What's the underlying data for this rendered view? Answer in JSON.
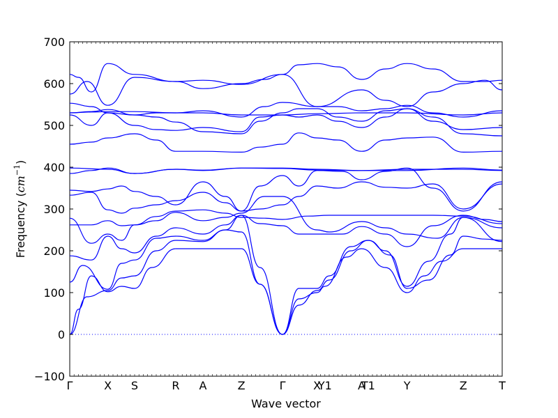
{
  "chart_data": {
    "type": "line",
    "title": "",
    "xlabel": "Wave vector",
    "ylabel_prefix": "Frequency (",
    "ylabel_unit": "cm",
    "ylabel_exp": "−1",
    "ylabel_suffix": ")",
    "ylim": [
      -100,
      700
    ],
    "yticks": [
      -100,
      0,
      100,
      200,
      300,
      400,
      500,
      600,
      700
    ],
    "grid": false,
    "line_color": "#0000ff",
    "zero_line_color": "#0000ff",
    "high_symmetry_points": [
      {
        "label": "Γ",
        "x": 0.0
      },
      {
        "label": "X",
        "x": 0.088
      },
      {
        "label": "S",
        "x": 0.15
      },
      {
        "label": "R",
        "x": 0.245
      },
      {
        "label": "A",
        "x": 0.308
      },
      {
        "label": "Z",
        "x": 0.397
      },
      {
        "label": "Γ",
        "x": 0.492
      },
      {
        "label": "X",
        "x": 0.572
      },
      {
        "label": "Y1",
        "x": 0.59
      },
      {
        "label": "A",
        "x": 0.675
      },
      {
        "label": "T1",
        "x": 0.69
      },
      {
        "label": "Y",
        "x": 0.78
      },
      {
        "label": "Z",
        "x": 0.91
      },
      {
        "label": "T",
        "x": 1.0
      }
    ],
    "series": [
      {
        "x": [
          0,
          0.02,
          0.05,
          0.088,
          0.12,
          0.15
        ],
        "values": [
          0,
          60,
          140,
          102,
          115,
          110
        ]
      },
      {
        "x": [
          0.15,
          0.19,
          0.245
        ],
        "values": [
          110,
          160,
          205
        ]
      },
      {
        "x": [
          0.245,
          0.308,
          0.397,
          0.44,
          0.492
        ],
        "values": [
          205,
          205,
          205,
          120,
          0
        ]
      },
      {
        "x": [
          0.492,
          0.53,
          0.572,
          0.59,
          0.64,
          0.675,
          0.73,
          0.78
        ],
        "values": [
          0,
          85,
          100,
          115,
          185,
          205,
          160,
          100
        ]
      },
      {
        "x": [
          0.78,
          0.82,
          0.86,
          0.91,
          1.0
        ],
        "values": [
          100,
          140,
          175,
          205,
          205
        ]
      },
      {
        "x": [
          0,
          0.04,
          0.088,
          0.12,
          0.15,
          0.2,
          0.245,
          0.308,
          0.36,
          0.397,
          0.44,
          0.492
        ],
        "values": [
          0,
          90,
          105,
          135,
          140,
          200,
          225,
          222,
          250,
          245,
          120,
          0
        ]
      },
      {
        "x": [
          0.492,
          0.53,
          0.572,
          0.6,
          0.65,
          0.69,
          0.74,
          0.78,
          0.83,
          0.88,
          0.91,
          0.96,
          1.0
        ],
        "values": [
          0,
          70,
          105,
          130,
          200,
          225,
          190,
          110,
          130,
          190,
          235,
          228,
          225
        ]
      },
      {
        "x": [
          0,
          0.03,
          0.088,
          0.12,
          0.15,
          0.2,
          0.245,
          0.308,
          0.36,
          0.397
        ],
        "values": [
          125,
          165,
          108,
          170,
          178,
          230,
          235,
          225,
          250,
          285
        ]
      },
      {
        "x": [
          0.397,
          0.44,
          0.492,
          0.53,
          0.572,
          0.6,
          0.65,
          0.69,
          0.73,
          0.78,
          0.83,
          0.88,
          0.91,
          1.0
        ],
        "values": [
          285,
          160,
          0,
          110,
          110,
          140,
          210,
          225,
          200,
          115,
          175,
          240,
          280,
          255
        ]
      },
      {
        "x": [
          0,
          0.05,
          0.088,
          0.12,
          0.15,
          0.2,
          0.245,
          0.308,
          0.36,
          0.397
        ],
        "values": [
          188,
          178,
          235,
          205,
          195,
          235,
          255,
          240,
          262,
          285
        ]
      },
      {
        "x": [
          0.397,
          0.44,
          0.492,
          0.53,
          0.572,
          0.63,
          0.675,
          0.73,
          0.78,
          0.84,
          0.91,
          0.96,
          1.0
        ],
        "values": [
          285,
          265,
          260,
          240,
          240,
          240,
          258,
          240,
          210,
          260,
          285,
          275,
          270
        ]
      },
      {
        "x": [
          0,
          0.05,
          0.088,
          0.12,
          0.15,
          0.2,
          0.245,
          0.308,
          0.36,
          0.397
        ],
        "values": [
          278,
          218,
          240,
          225,
          262,
          272,
          292,
          272,
          280,
          290
        ]
      },
      {
        "x": [
          0.397,
          0.45,
          0.492,
          0.572,
          0.6,
          0.675,
          0.73,
          0.78,
          0.85,
          0.91,
          1.0
        ],
        "values": [
          290,
          330,
          330,
          250,
          245,
          270,
          255,
          240,
          230,
          280,
          222
        ]
      },
      {
        "x": [
          0,
          0.05,
          0.088,
          0.12,
          0.15,
          0.2,
          0.245,
          0.308,
          0.36,
          0.397
        ],
        "values": [
          262,
          262,
          272,
          260,
          262,
          282,
          295,
          298,
          290,
          280
        ]
      },
      {
        "x": [
          0.397,
          0.45,
          0.492,
          0.55,
          0.6,
          0.675,
          0.73,
          0.78,
          0.84,
          0.91,
          1.0
        ],
        "values": [
          280,
          278,
          275,
          283,
          285,
          285,
          285,
          285,
          285,
          283,
          265
        ]
      },
      {
        "x": [
          0,
          0.05,
          0.088,
          0.12,
          0.15,
          0.2,
          0.245,
          0.308,
          0.36,
          0.397,
          0.44,
          0.492,
          0.53,
          0.572
        ],
        "values": [
          333,
          340,
          298,
          290,
          302,
          310,
          320,
          340,
          315,
          295,
          355,
          380,
          355,
          392
        ]
      },
      {
        "x": [
          0.572,
          0.63,
          0.675,
          0.73,
          0.78,
          0.84,
          0.91,
          1.0
        ],
        "values": [
          392,
          390,
          370,
          390,
          398,
          350,
          295,
          365
        ]
      },
      {
        "x": [
          0,
          0.05,
          0.088,
          0.12,
          0.15,
          0.2,
          0.245,
          0.308,
          0.36,
          0.397,
          0.44,
          0.492,
          0.53,
          0.572,
          0.62,
          0.675,
          0.73,
          0.78,
          0.84,
          0.91,
          1.0
        ],
        "values": [
          345,
          342,
          348,
          355,
          342,
          330,
          310,
          365,
          330,
          295,
          300,
          310,
          330,
          355,
          350,
          365,
          352,
          350,
          360,
          300,
          360
        ]
      },
      {
        "x": [
          0,
          0.088,
          0.15,
          0.245,
          0.308,
          0.397,
          0.492,
          0.572,
          0.675,
          0.78,
          0.91,
          1.0
        ],
        "values": [
          398,
          395,
          385,
          395,
          393,
          398,
          397,
          393,
          392,
          392,
          398,
          393
        ]
      },
      {
        "x": [
          0,
          0.05,
          0.088,
          0.15,
          0.245,
          0.308,
          0.397,
          0.492,
          0.572,
          0.675,
          0.78,
          0.91,
          1.0
        ],
        "values": [
          385,
          392,
          398,
          385,
          395,
          392,
          398,
          398,
          395,
          392,
          395,
          395,
          392
        ]
      },
      {
        "x": [
          0,
          0.05,
          0.088,
          0.15,
          0.2,
          0.245,
          0.308,
          0.397,
          0.44,
          0.492,
          0.53,
          0.572,
          0.62,
          0.675,
          0.73,
          0.78,
          0.84,
          0.91,
          1.0
        ],
        "values": [
          455,
          460,
          470,
          480,
          465,
          438,
          438,
          436,
          448,
          455,
          482,
          470,
          465,
          438,
          465,
          470,
          472,
          436,
          438
        ]
      },
      {
        "x": [
          0,
          0.05,
          0.088,
          0.15,
          0.2,
          0.245,
          0.308,
          0.397,
          0.44,
          0.492,
          0.53,
          0.572,
          0.62,
          0.675,
          0.73,
          0.78,
          0.84,
          0.91,
          1.0
        ],
        "values": [
          525,
          500,
          530,
          500,
          490,
          488,
          495,
          485,
          520,
          525,
          520,
          525,
          510,
          495,
          520,
          540,
          510,
          490,
          495
        ]
      },
      {
        "x": [
          0,
          0.05,
          0.088,
          0.15,
          0.2,
          0.245,
          0.308,
          0.397,
          0.44,
          0.492,
          0.53,
          0.572,
          0.62,
          0.675,
          0.73,
          0.78,
          0.84,
          0.91,
          1.0
        ],
        "values": [
          530,
          533,
          538,
          525,
          520,
          508,
          485,
          480,
          510,
          530,
          540,
          540,
          520,
          510,
          535,
          540,
          520,
          480,
          475
        ]
      },
      {
        "x": [
          0,
          0.05,
          0.088,
          0.15,
          0.2,
          0.245,
          0.308,
          0.397,
          0.45,
          0.492,
          0.572,
          0.62,
          0.675,
          0.73,
          0.78,
          0.84,
          0.91,
          1.0
        ],
        "values": [
          553,
          545,
          530,
          525,
          530,
          530,
          535,
          520,
          545,
          555,
          545,
          545,
          535,
          540,
          548,
          530,
          520,
          535
        ]
      },
      {
        "x": [
          0,
          0.05,
          0.088,
          0.15,
          0.245,
          0.308,
          0.397,
          0.492,
          0.572,
          0.675,
          0.78,
          0.91,
          1.0
        ],
        "values": [
          530,
          532,
          533,
          533,
          530,
          530,
          525,
          525,
          528,
          530,
          530,
          525,
          530
        ]
      },
      {
        "x": [
          0,
          0.04,
          0.088,
          0.15,
          0.245,
          0.308,
          0.397,
          0.45,
          0.492,
          0.572,
          0.675,
          0.73,
          0.78,
          0.84,
          0.91,
          0.96,
          1.0
        ],
        "values": [
          575,
          605,
          548,
          615,
          605,
          588,
          600,
          610,
          622,
          545,
          585,
          560,
          545,
          580,
          600,
          608,
          585
        ]
      },
      {
        "x": [
          0,
          0.02,
          0.05,
          0.088,
          0.15,
          0.245,
          0.308,
          0.397,
          0.492,
          0.53,
          0.572,
          0.62,
          0.675,
          0.73,
          0.78,
          0.84,
          0.91,
          0.96,
          1.0
        ],
        "values": [
          622,
          615,
          580,
          648,
          622,
          605,
          608,
          598,
          622,
          645,
          648,
          640,
          610,
          635,
          648,
          635,
          605,
          605,
          608
        ]
      }
    ]
  }
}
